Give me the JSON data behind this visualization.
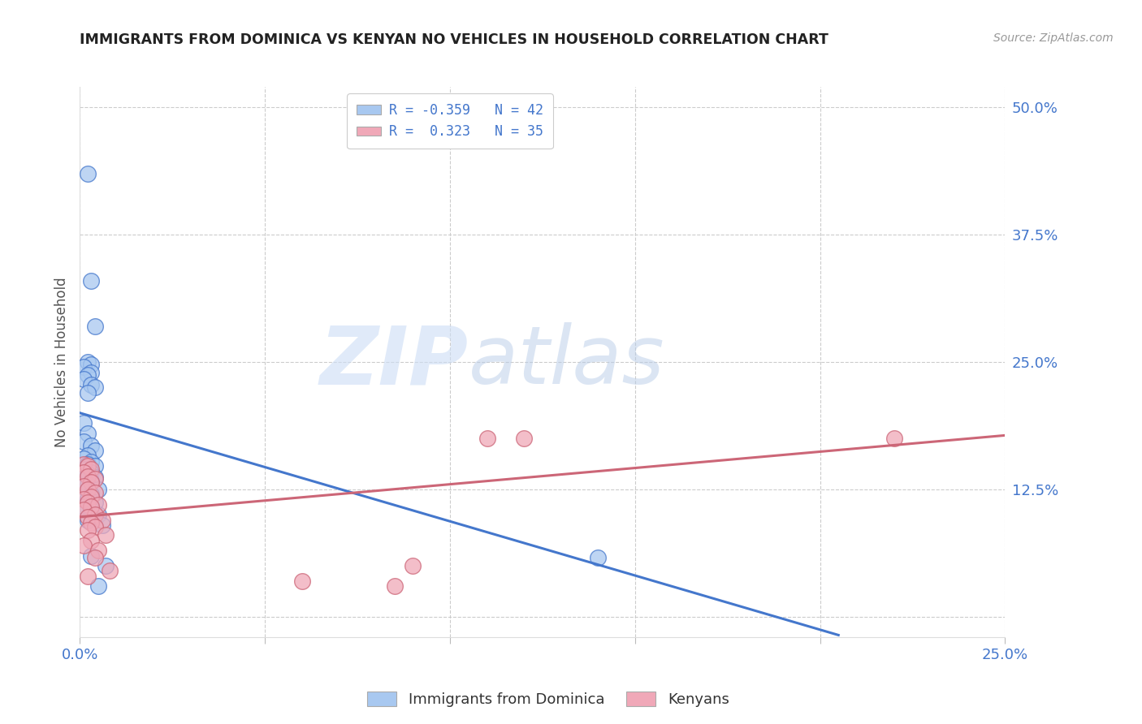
{
  "title": "IMMIGRANTS FROM DOMINICA VS KENYAN NO VEHICLES IN HOUSEHOLD CORRELATION CHART",
  "source": "Source: ZipAtlas.com",
  "ylabel": "No Vehicles in Household",
  "xlim": [
    0.0,
    0.25
  ],
  "ylim": [
    -0.02,
    0.52
  ],
  "xticks": [
    0.0,
    0.05,
    0.1,
    0.15,
    0.2,
    0.25
  ],
  "xticklabels": [
    "0.0%",
    "",
    "",
    "",
    "",
    "25.0%"
  ],
  "yticks": [
    0.0,
    0.125,
    0.25,
    0.375,
    0.5
  ],
  "yticklabels": [
    "",
    "12.5%",
    "25.0%",
    "37.5%",
    "50.0%"
  ],
  "color_blue": "#a8c8f0",
  "color_pink": "#f0a8b8",
  "line_blue": "#4477cc",
  "line_pink": "#cc6677",
  "watermark_zip": "ZIP",
  "watermark_atlas": "atlas",
  "blue_dots": [
    [
      0.002,
      0.435
    ],
    [
      0.003,
      0.33
    ],
    [
      0.004,
      0.285
    ],
    [
      0.002,
      0.25
    ],
    [
      0.003,
      0.248
    ],
    [
      0.001,
      0.245
    ],
    [
      0.003,
      0.24
    ],
    [
      0.002,
      0.237
    ],
    [
      0.001,
      0.233
    ],
    [
      0.003,
      0.228
    ],
    [
      0.004,
      0.225
    ],
    [
      0.002,
      0.22
    ],
    [
      0.001,
      0.19
    ],
    [
      0.002,
      0.18
    ],
    [
      0.001,
      0.172
    ],
    [
      0.003,
      0.168
    ],
    [
      0.004,
      0.163
    ],
    [
      0.002,
      0.158
    ],
    [
      0.001,
      0.155
    ],
    [
      0.003,
      0.152
    ],
    [
      0.002,
      0.15
    ],
    [
      0.004,
      0.148
    ],
    [
      0.001,
      0.145
    ],
    [
      0.003,
      0.142
    ],
    [
      0.002,
      0.14
    ],
    [
      0.004,
      0.137
    ],
    [
      0.003,
      0.133
    ],
    [
      0.002,
      0.13
    ],
    [
      0.001,
      0.127
    ],
    [
      0.005,
      0.125
    ],
    [
      0.003,
      0.12
    ],
    [
      0.002,
      0.115
    ],
    [
      0.004,
      0.112
    ],
    [
      0.001,
      0.108
    ],
    [
      0.003,
      0.105
    ],
    [
      0.005,
      0.1
    ],
    [
      0.002,
      0.095
    ],
    [
      0.006,
      0.09
    ],
    [
      0.003,
      0.06
    ],
    [
      0.007,
      0.05
    ],
    [
      0.005,
      0.03
    ],
    [
      0.14,
      0.058
    ]
  ],
  "pink_dots": [
    [
      0.001,
      0.15
    ],
    [
      0.002,
      0.148
    ],
    [
      0.003,
      0.145
    ],
    [
      0.001,
      0.142
    ],
    [
      0.002,
      0.138
    ],
    [
      0.004,
      0.135
    ],
    [
      0.003,
      0.132
    ],
    [
      0.001,
      0.128
    ],
    [
      0.002,
      0.125
    ],
    [
      0.004,
      0.122
    ],
    [
      0.003,
      0.118
    ],
    [
      0.001,
      0.115
    ],
    [
      0.002,
      0.112
    ],
    [
      0.005,
      0.11
    ],
    [
      0.003,
      0.108
    ],
    [
      0.001,
      0.105
    ],
    [
      0.004,
      0.1
    ],
    [
      0.002,
      0.098
    ],
    [
      0.006,
      0.095
    ],
    [
      0.003,
      0.092
    ],
    [
      0.004,
      0.088
    ],
    [
      0.002,
      0.085
    ],
    [
      0.007,
      0.08
    ],
    [
      0.003,
      0.075
    ],
    [
      0.001,
      0.07
    ],
    [
      0.005,
      0.065
    ],
    [
      0.004,
      0.058
    ],
    [
      0.09,
      0.05
    ],
    [
      0.008,
      0.045
    ],
    [
      0.002,
      0.04
    ],
    [
      0.06,
      0.035
    ],
    [
      0.085,
      0.03
    ],
    [
      0.11,
      0.175
    ],
    [
      0.12,
      0.175
    ],
    [
      0.22,
      0.175
    ]
  ],
  "blue_line_x": [
    0.0,
    0.205
  ],
  "blue_line_y": [
    0.2,
    -0.018
  ],
  "pink_line_x": [
    0.0,
    0.25
  ],
  "pink_line_y": [
    0.098,
    0.178
  ]
}
